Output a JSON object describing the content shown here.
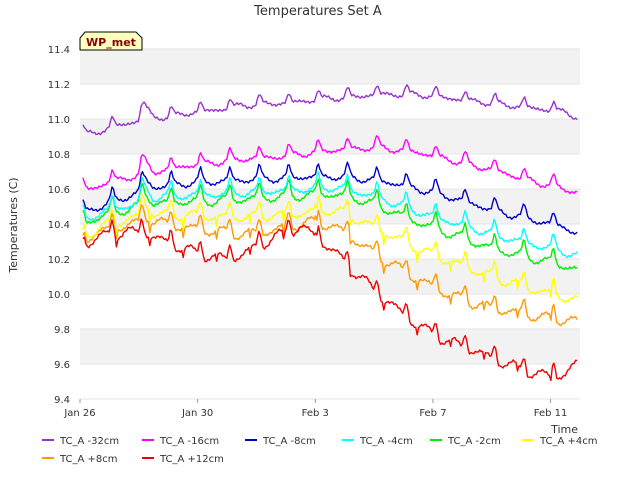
{
  "chart_data": {
    "type": "line",
    "title": "Temperatures Set A",
    "xlabel": "Time",
    "ylabel": "Temperatures (C)",
    "badge": "WP_met",
    "x_start": "2012-01-26",
    "x_end": "2012-02-12T03:00",
    "xlim_days": [
      0,
      17.0
    ],
    "ylim": [
      9.4,
      11.4
    ],
    "y_ticks": [
      "9.4",
      "9.6",
      "9.8",
      "10.0",
      "10.2",
      "10.4",
      "10.6",
      "10.8",
      "11.0",
      "11.2",
      "11.4"
    ],
    "x_ticks": [
      {
        "label": "Jan 26",
        "day": 0
      },
      {
        "label": "Jan 30",
        "day": 4
      },
      {
        "label": "Feb 3",
        "day": 8
      },
      {
        "label": "Feb 7",
        "day": 12
      },
      {
        "label": "Feb 11",
        "day": 16
      }
    ],
    "grid": "horizontal bands",
    "legend_position": "bottom",
    "x_days": [
      0.1,
      0.5,
      1.0,
      1.5,
      2.0,
      2.2,
      2.5,
      3.0,
      3.5,
      4.0,
      4.5,
      5.0,
      5.5,
      6.0,
      6.5,
      7.0,
      7.5,
      8.0,
      8.5,
      9.0,
      9.5,
      10.0,
      10.5,
      11.0,
      11.5,
      12.0,
      12.5,
      13.0,
      13.5,
      14.0,
      14.5,
      15.0,
      15.5,
      16.0,
      16.5,
      16.9
    ],
    "series": [
      {
        "name": "TC_A -32cm",
        "color": "#9932CC",
        "values": [
          10.91,
          10.92,
          10.95,
          10.97,
          10.99,
          11.08,
          11.01,
          11.01,
          11.03,
          11.04,
          11.05,
          11.06,
          11.08,
          11.08,
          11.09,
          11.09,
          11.1,
          11.11,
          11.12,
          11.12,
          11.13,
          11.14,
          11.14,
          11.14,
          11.14,
          11.13,
          11.12,
          11.11,
          11.1,
          11.09,
          11.08,
          11.07,
          11.06,
          11.05,
          11.04,
          11.01
        ]
      },
      {
        "name": "TC_A -16cm",
        "color": "#FF00FF",
        "values": [
          10.59,
          10.61,
          10.64,
          10.66,
          10.68,
          10.76,
          10.7,
          10.71,
          10.73,
          10.74,
          10.75,
          10.76,
          10.77,
          10.78,
          10.78,
          10.79,
          10.8,
          10.81,
          10.82,
          10.83,
          10.83,
          10.84,
          10.83,
          10.82,
          10.81,
          10.79,
          10.77,
          10.75,
          10.73,
          10.71,
          10.69,
          10.66,
          10.64,
          10.62,
          10.6,
          10.58
        ]
      },
      {
        "name": "TC_A -8cm",
        "color": "#0000CC",
        "values": [
          10.46,
          10.49,
          10.52,
          10.55,
          10.58,
          10.66,
          10.61,
          10.62,
          10.63,
          10.64,
          10.64,
          10.65,
          10.65,
          10.66,
          10.66,
          10.66,
          10.67,
          10.67,
          10.67,
          10.67,
          10.66,
          10.65,
          10.64,
          10.62,
          10.6,
          10.58,
          10.56,
          10.53,
          10.51,
          10.48,
          10.46,
          10.44,
          10.42,
          10.4,
          10.38,
          10.35
        ]
      },
      {
        "name": "TC_A -4cm",
        "color": "#00FFFF",
        "values": [
          10.42,
          10.45,
          10.48,
          10.5,
          10.52,
          10.61,
          10.55,
          10.56,
          10.56,
          10.57,
          10.57,
          10.57,
          10.58,
          10.58,
          10.59,
          10.59,
          10.6,
          10.6,
          10.61,
          10.6,
          10.58,
          10.56,
          10.53,
          10.5,
          10.47,
          10.44,
          10.42,
          10.39,
          10.37,
          10.34,
          10.32,
          10.3,
          10.28,
          10.26,
          10.24,
          10.22
        ]
      },
      {
        "name": "TC_A -2cm",
        "color": "#00EE00",
        "values": [
          10.4,
          10.43,
          10.46,
          10.48,
          10.5,
          10.58,
          10.52,
          10.52,
          10.53,
          10.53,
          10.53,
          10.54,
          10.54,
          10.55,
          10.55,
          10.56,
          10.56,
          10.57,
          10.57,
          10.56,
          10.54,
          10.51,
          10.48,
          10.44,
          10.41,
          10.38,
          10.35,
          10.32,
          10.29,
          10.26,
          10.24,
          10.22,
          10.2,
          10.18,
          10.16,
          10.14
        ]
      },
      {
        "name": "TC_A +4cm",
        "color": "#FFFF00",
        "values": [
          10.33,
          10.36,
          10.4,
          10.42,
          10.44,
          10.52,
          10.46,
          10.45,
          10.45,
          10.45,
          10.44,
          10.44,
          10.44,
          10.44,
          10.45,
          10.45,
          10.46,
          10.47,
          10.48,
          10.46,
          10.42,
          10.38,
          10.34,
          10.3,
          10.26,
          10.22,
          10.19,
          10.16,
          10.13,
          10.1,
          10.07,
          10.05,
          10.02,
          10.0,
          9.98,
          9.96
        ]
      },
      {
        "name": "TC_A +8cm",
        "color": "#FF9900",
        "values": [
          10.31,
          10.34,
          10.37,
          10.39,
          10.4,
          10.46,
          10.41,
          10.4,
          10.38,
          10.37,
          10.36,
          10.35,
          10.34,
          10.35,
          10.36,
          10.38,
          10.4,
          10.41,
          10.39,
          10.35,
          10.29,
          10.23,
          10.18,
          10.13,
          10.08,
          10.04,
          10.0,
          9.97,
          9.94,
          9.92,
          9.9,
          9.89,
          9.87,
          9.86,
          9.85,
          9.84
        ]
      },
      {
        "name": "TC_A +12cm",
        "color": "#EE0000",
        "values": [
          10.28,
          10.31,
          10.34,
          10.35,
          10.35,
          10.36,
          10.32,
          10.29,
          10.26,
          10.23,
          10.21,
          10.2,
          10.22,
          10.27,
          10.31,
          10.35,
          10.38,
          10.33,
          10.26,
          10.18,
          10.1,
          10.02,
          9.95,
          9.88,
          9.82,
          9.77,
          9.73,
          9.7,
          9.67,
          9.63,
          9.6,
          9.57,
          9.54,
          9.53,
          9.54,
          9.6
        ]
      }
    ]
  }
}
